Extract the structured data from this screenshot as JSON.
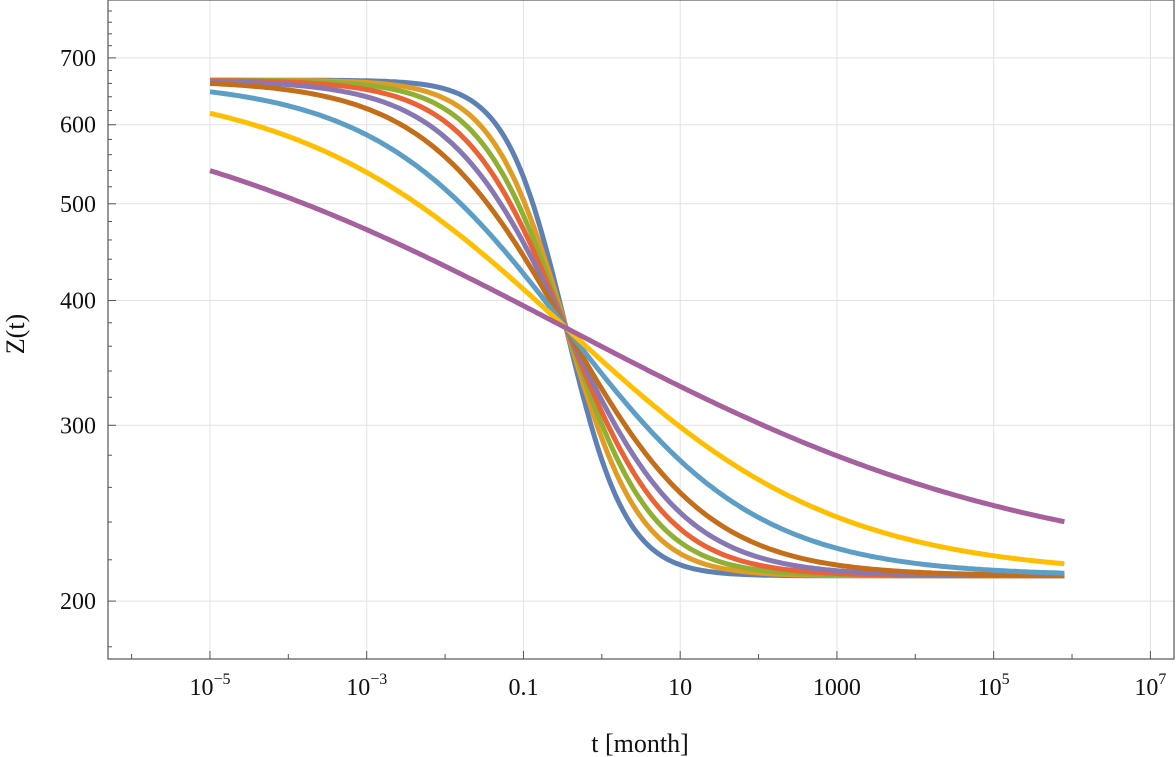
{
  "chart_data": {
    "type": "line",
    "title": "",
    "xlabel": "t [month]",
    "ylabel": "Z(t)",
    "x_scale": "log",
    "y_scale": "log",
    "xlim": [
      5e-07,
      20000000
    ],
    "ylim": [
      175,
      800
    ],
    "grid": true,
    "legend": "none",
    "x_ticks": [
      {
        "value": 1e-05,
        "base": "10",
        "exp": "−5"
      },
      {
        "value": 0.001,
        "base": "10",
        "exp": "−3"
      },
      {
        "value": 0.1,
        "base": "0.1",
        "exp": ""
      },
      {
        "value": 10,
        "base": "10",
        "exp": ""
      },
      {
        "value": 1000,
        "base": "1000",
        "exp": ""
      },
      {
        "value": 100000,
        "base": "10",
        "exp": "5"
      },
      {
        "value": 10000000,
        "base": "10",
        "exp": "7"
      }
    ],
    "y_ticks": [
      {
        "value": 200,
        "label": "200"
      },
      {
        "value": 300,
        "label": "300"
      },
      {
        "value": 400,
        "label": "400"
      },
      {
        "value": 500,
        "label": "500"
      },
      {
        "value": 600,
        "label": "600"
      },
      {
        "value": 700,
        "label": "700"
      }
    ],
    "curve_model": {
      "upper": 665,
      "lower": 212,
      "crossing_t": 0.35
    },
    "series": [
      {
        "color": "#5E81B5",
        "steepness": 2.6
      },
      {
        "color": "#E19C24",
        "steepness": 2.1
      },
      {
        "color": "#8FB032",
        "steepness": 1.8
      },
      {
        "color": "#EB6235",
        "steepness": 1.55
      },
      {
        "color": "#8778B3",
        "steepness": 1.32
      },
      {
        "color": "#C56E1A",
        "steepness": 1.1
      },
      {
        "color": "#5D9EC7",
        "steepness": 0.82
      },
      {
        "color": "#FFBF00",
        "steepness": 0.58
      },
      {
        "color": "#A5609D",
        "steepness": 0.33
      }
    ]
  }
}
